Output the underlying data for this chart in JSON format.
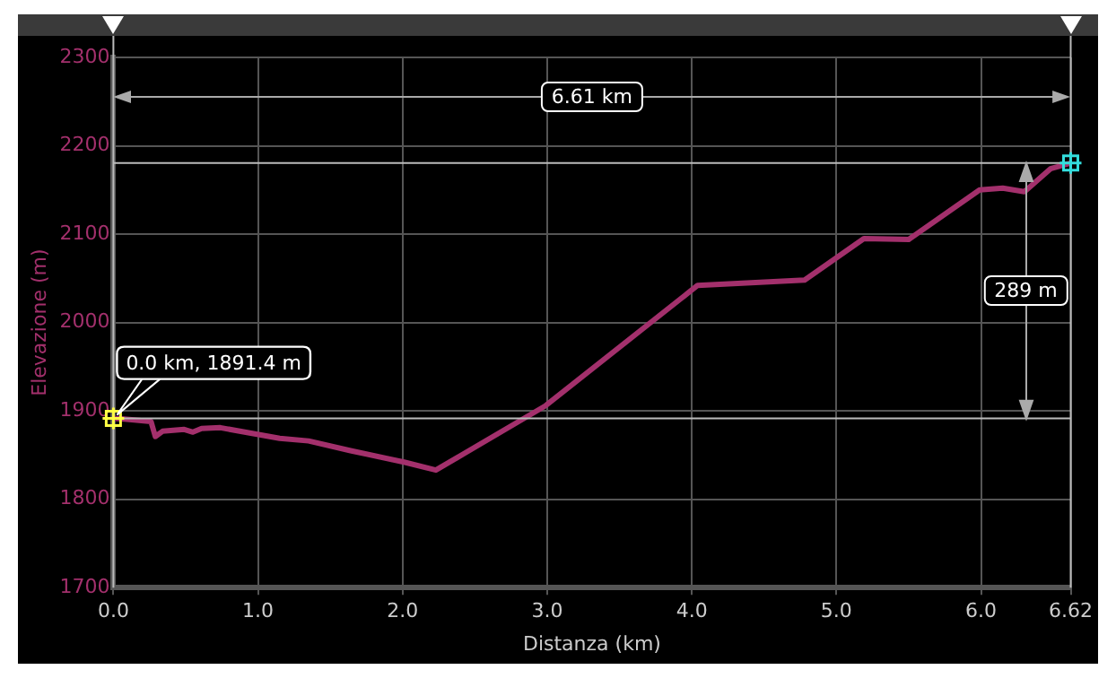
{
  "chart_data": {
    "type": "line",
    "xlabel": "Distanza (km)",
    "ylabel": "Elevazione (m)",
    "x": [
      0,
      0.06,
      0.26,
      0.29,
      0.34,
      0.49,
      0.55,
      0.61,
      0.74,
      1.15,
      1.35,
      1.64,
      2.01,
      2.23,
      2.99,
      4.04,
      4.78,
      5.19,
      5.5,
      5.99,
      6.15,
      6.3,
      6.48,
      6.62
    ],
    "series": [
      {
        "color": "#a3306c",
        "values": [
          1891.4,
          1891,
          1888,
          1871,
          1877,
          1879,
          1876,
          1880,
          1881,
          1869,
          1866,
          1855,
          1842,
          1833,
          1906,
          2042,
          2048,
          2095,
          2094,
          2150,
          2152,
          2148,
          2174,
          2180.4
        ]
      }
    ],
    "xlim": [
      0,
      6.62
    ],
    "ylim": [
      1700,
      2300
    ],
    "xticks": [
      {
        "value": 0,
        "label": "0.0"
      },
      {
        "value": 1,
        "label": "1.0"
      },
      {
        "value": 2,
        "label": "2.0"
      },
      {
        "value": 3,
        "label": "3.0"
      },
      {
        "value": 4,
        "label": "4.0"
      },
      {
        "value": 5,
        "label": "5.0"
      },
      {
        "value": 6,
        "label": "6.0"
      },
      6.62
    ],
    "yticks": [
      1700,
      1800,
      1900,
      2000,
      2100,
      2200,
      2300
    ],
    "grid": true,
    "legend": false,
    "marker": "none",
    "line_style": "solid",
    "ref_lines": [
      {
        "axis": "y",
        "value": 1891.4,
        "color": "#bbbbbb"
      },
      {
        "axis": "y",
        "value": 2180.4,
        "color": "#bbbbbb"
      },
      {
        "axis": "x",
        "value": 0,
        "color": "#bbbbbb"
      },
      {
        "axis": "x",
        "value": 6.62,
        "color": "#bbbbbb"
      }
    ],
    "annotations": [
      {
        "text": "0.0 km, 1891.4 m",
        "x": 0,
        "y": 1891.4
      },
      "6.61 km",
      "289 m"
    ]
  }
}
